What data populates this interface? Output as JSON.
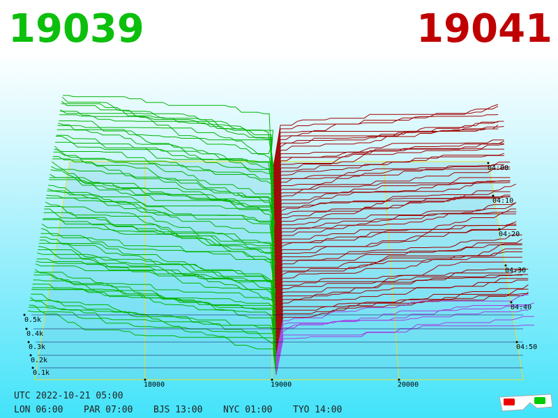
{
  "header": {
    "bid": "19039",
    "ask": "19041"
  },
  "axes": {
    "price_labels": [
      "18000",
      "19000",
      "20000"
    ],
    "time_labels": [
      "04:00",
      "04:10",
      "04:20",
      "04:30",
      "04:40",
      "04:50"
    ],
    "volume_labels": [
      "0.5k",
      "0.4k",
      "0.3k",
      "0.2k",
      "0.1k"
    ]
  },
  "footer": {
    "utc": "UTC 2022-10-21 05:00",
    "cities": [
      "LON 06:00",
      "PAR 07:00",
      "BJS 13:00",
      "NYC 01:00",
      "TYO 14:00"
    ]
  }
}
